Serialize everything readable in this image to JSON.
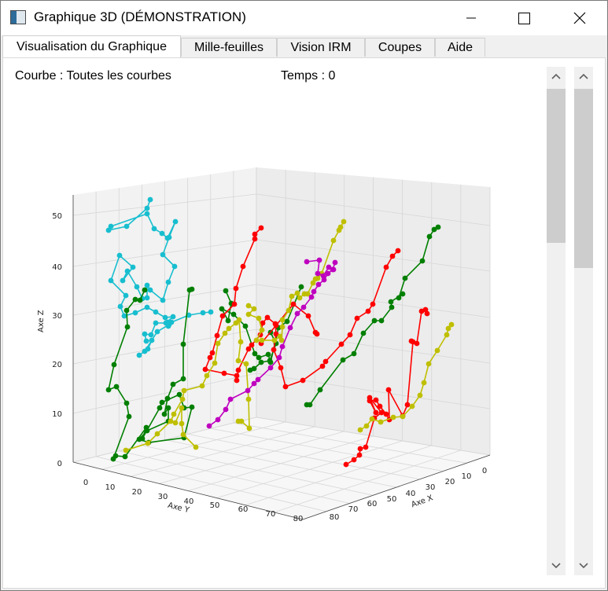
{
  "window": {
    "title": "Graphique 3D (DÉMONSTRATION)"
  },
  "tabs": [
    {
      "label": "Visualisation du Graphique",
      "active": true
    },
    {
      "label": "Mille-feuilles",
      "active": false
    },
    {
      "label": "Vision IRM",
      "active": false
    },
    {
      "label": "Coupes",
      "active": false
    },
    {
      "label": "Aide",
      "active": false
    }
  ],
  "info": {
    "curve": "Courbe : Toutes les courbes",
    "time": "Temps : 0"
  },
  "chart_data": {
    "type": "line3d",
    "xlabel": "Axe X",
    "ylabel": "Axe Y",
    "zlabel": "Axe Z",
    "x_ticks": [
      "0",
      "10",
      "20",
      "30",
      "40",
      "50",
      "60",
      "70",
      "80"
    ],
    "y_ticks": [
      "0",
      "10",
      "20",
      "30",
      "40",
      "50",
      "60",
      "70",
      "80"
    ],
    "z_ticks": [
      "0",
      "10",
      "20",
      "30",
      "40",
      "50"
    ],
    "colors": {
      "cyan": "#17becf",
      "green": "#007f00",
      "red": "#ff0000",
      "yellow": "#bfbf00",
      "magenta": "#bf00bf"
    }
  }
}
